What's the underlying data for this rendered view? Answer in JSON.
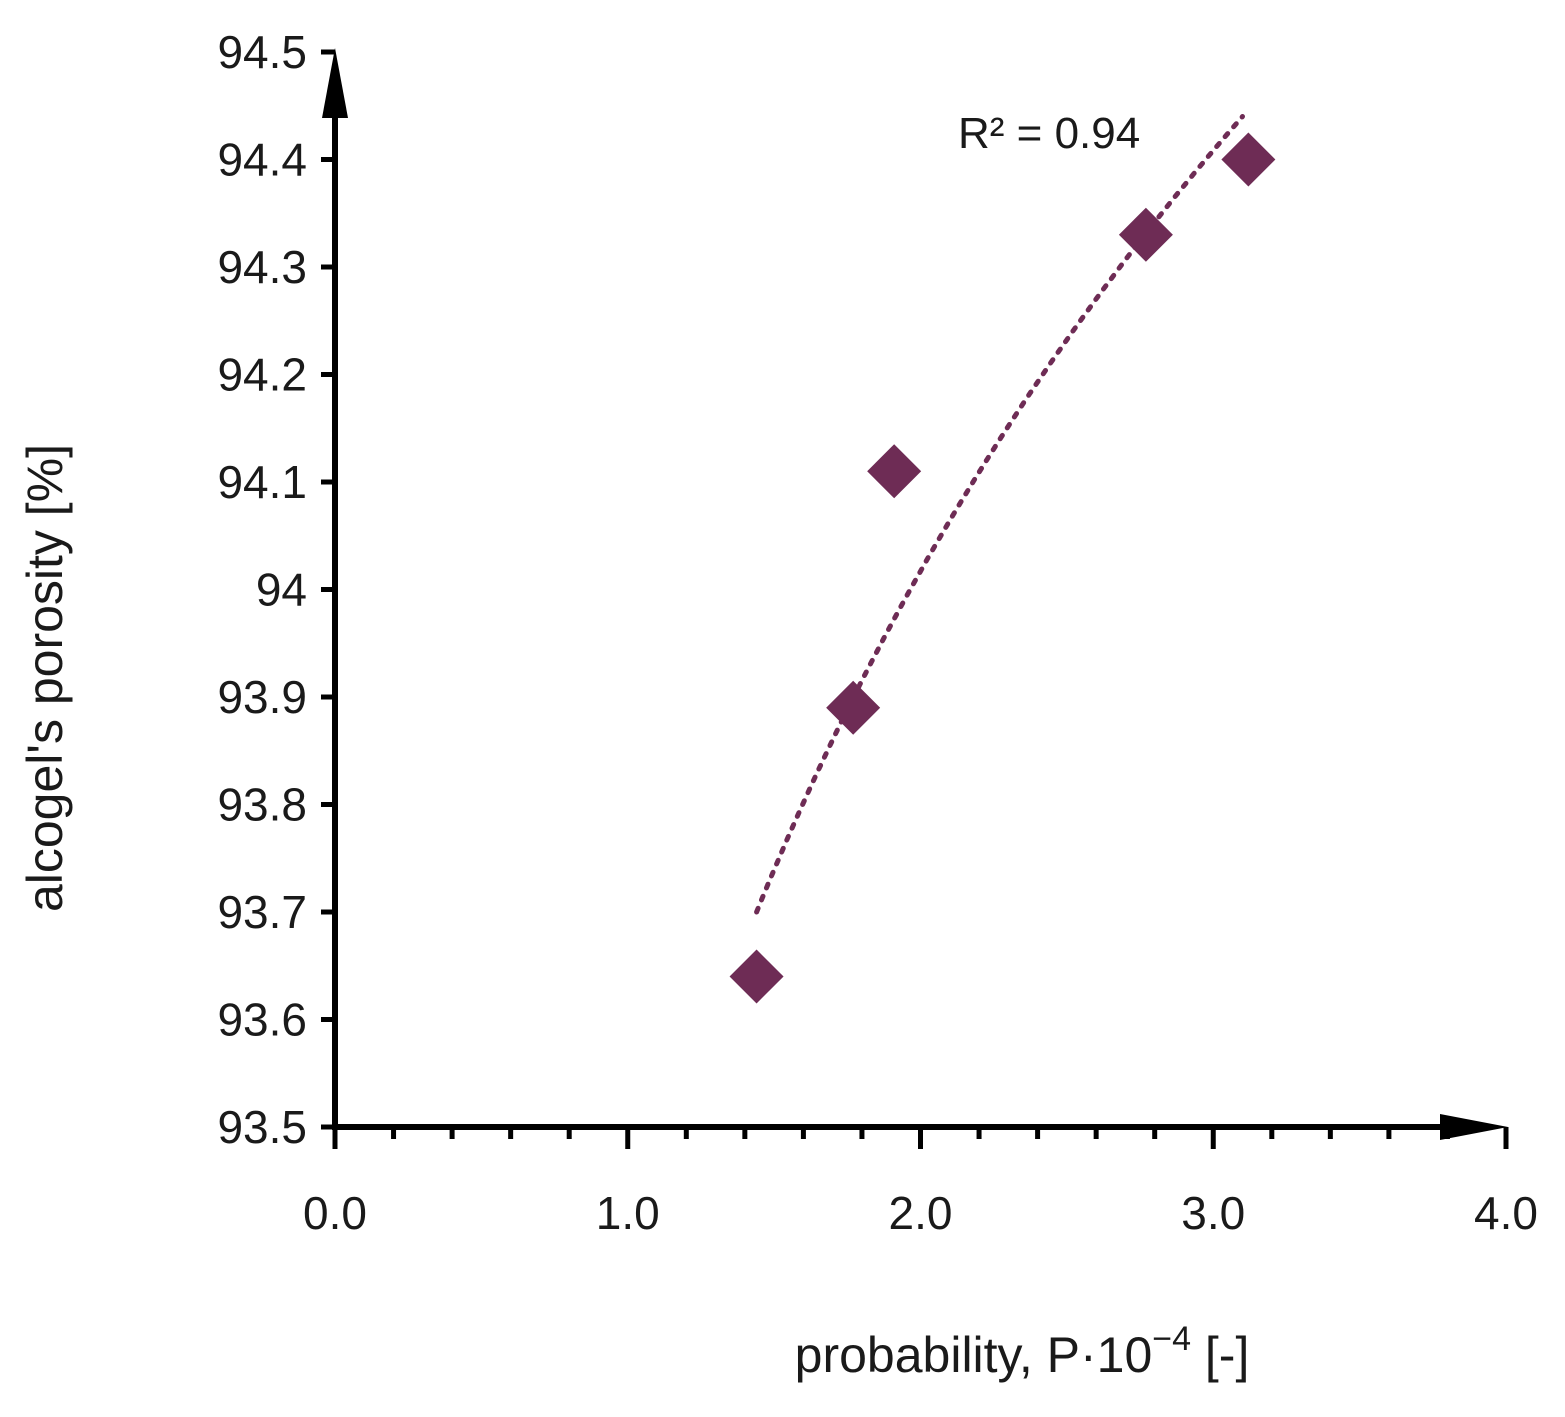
{
  "chart_data": {
    "type": "scatter",
    "xlabel_main": "probability, P·10",
    "xlabel_exp": "−4",
    "xlabel_unit": " [-]",
    "ylabel": "alcogel's porosity [%]",
    "xlim": [
      0,
      4
    ],
    "ylim": [
      93.5,
      94.5
    ],
    "x_ticks": [
      0,
      1,
      2,
      3,
      4
    ],
    "x_tick_labels": [
      "0.0",
      "1.0",
      "2.0",
      "3.0",
      "4.0"
    ],
    "x_minor_step": 0.2,
    "y_ticks": [
      93.5,
      93.6,
      93.7,
      93.8,
      93.9,
      94,
      94.1,
      94.2,
      94.3,
      94.4,
      94.5
    ],
    "y_tick_labels": [
      "93.5",
      "93.6",
      "93.7",
      "93.8",
      "93.9",
      "94",
      "94.1",
      "94.2",
      "94.3",
      "94.4",
      "94.5"
    ],
    "grid": false,
    "points": [
      {
        "x": 1.44,
        "y": 93.64
      },
      {
        "x": 1.77,
        "y": 93.89
      },
      {
        "x": 1.91,
        "y": 94.11
      },
      {
        "x": 2.77,
        "y": 94.33
      },
      {
        "x": 3.12,
        "y": 94.4
      }
    ],
    "trendline": {
      "type": "logarithmic",
      "x_range": [
        1.44,
        3.1
      ],
      "y_at_start": 93.7,
      "y_at_end": 94.44
    },
    "annotation": "R² = 0.94",
    "marker_color": "#6e2c55",
    "axis_color": "#000000"
  }
}
